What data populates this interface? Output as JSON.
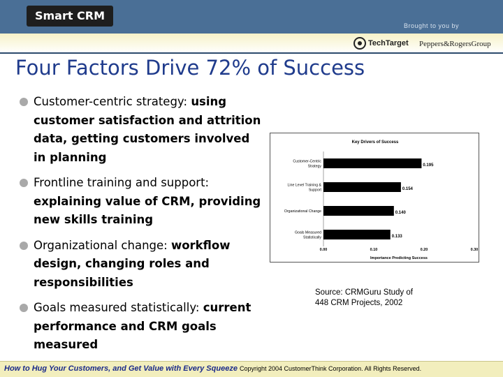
{
  "header": {
    "logo": "Smart CRM",
    "brought_by": "Brought to you by"
  },
  "sponsors": {
    "techtarget": "TechTarget",
    "peppers": "Peppers&RogersGroup"
  },
  "title": "Four Factors Drive 72% of Success",
  "bullets": [
    {
      "lead": "Customer-centric strategy:",
      "detail": "using customer satisfaction and attrition data, getting customers involved in planning"
    },
    {
      "lead": "Frontline training and support:",
      "detail": "explaining value of CRM, providing new skills training"
    },
    {
      "lead": "Organizational change:",
      "detail": "workflow design, changing roles and responsibilities"
    },
    {
      "lead": "Goals measured statistically:",
      "detail": "current performance and CRM goals measured"
    }
  ],
  "chart_data": {
    "type": "bar",
    "orientation": "horizontal",
    "title": "Key Drivers of Success",
    "xlabel": "Importance Predicting Success",
    "xlim": [
      0,
      0.3
    ],
    "xticks": [
      "0.00",
      "0.10",
      "0.20",
      "0.30"
    ],
    "categories": [
      [
        "Customer-Centric",
        "Strategy"
      ],
      [
        "Line Level Training &",
        "Support"
      ],
      [
        "Organizational Change"
      ],
      [
        "Goals Measured",
        "Statistically"
      ]
    ],
    "values": [
      0.195,
      0.154,
      0.14,
      0.133
    ],
    "data_labels": [
      "0.195",
      "0.154",
      "0.140",
      "0.133"
    ],
    "bar_color": "#000000"
  },
  "source": "Source: CRMGuru Study of 448 CRM Projects, 2002",
  "footer": {
    "tagline": "How to Hug Your Customers, and Get Value with Every Squeeze",
    "copyright": "Copyright 2004 CustomerThink Corporation. All Rights Reserved."
  },
  "colors": {
    "header": "#4a6f96",
    "title": "#1f3b8c",
    "footer_bg": "#f2eebd"
  }
}
